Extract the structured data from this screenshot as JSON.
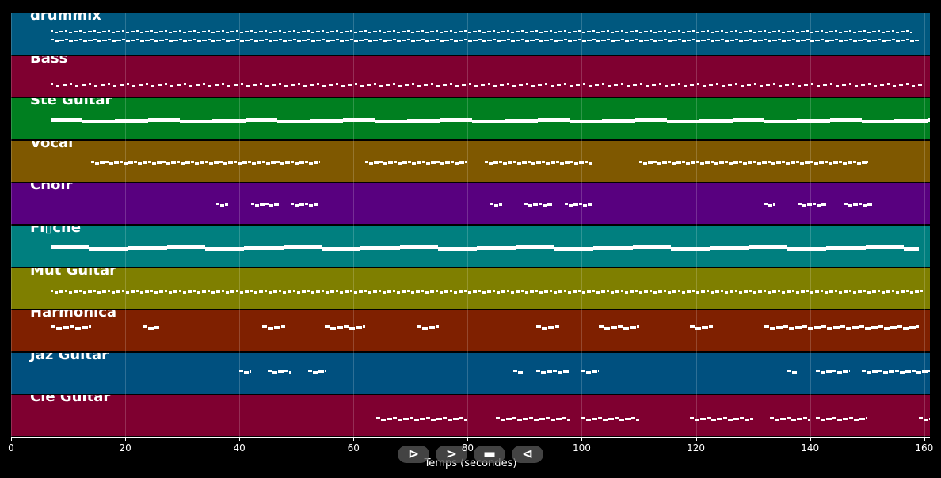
{
  "tracks": [
    {
      "name": "drummix",
      "color": "#00587f"
    },
    {
      "name": "Bass",
      "color": "#7f0030"
    },
    {
      "name": "Ste Guitar",
      "color": "#007f20"
    },
    {
      "name": "Vocal",
      "color": "#7f5800"
    },
    {
      "name": "Choir",
      "color": "#58007f"
    },
    {
      "name": "Fl▯che",
      "color": "#007f7f"
    },
    {
      "name": "Mut Guitar",
      "color": "#7f7f00"
    },
    {
      "name": "Harmonica",
      "color": "#7f2000"
    },
    {
      "name": "Jaz Guitar",
      "color": "#00507f"
    },
    {
      "name": "Cle Guitar",
      "color": "#7f0030"
    }
  ],
  "axis": {
    "label": "Temps (secondes)",
    "min": 0,
    "max": 161,
    "ticks": [
      "0",
      "20",
      "40",
      "60",
      "80",
      "100",
      "120",
      "140",
      "160"
    ]
  },
  "controls": {
    "play": "⊳",
    "forward": ">",
    "stop": "▬",
    "back": "⊲"
  }
}
